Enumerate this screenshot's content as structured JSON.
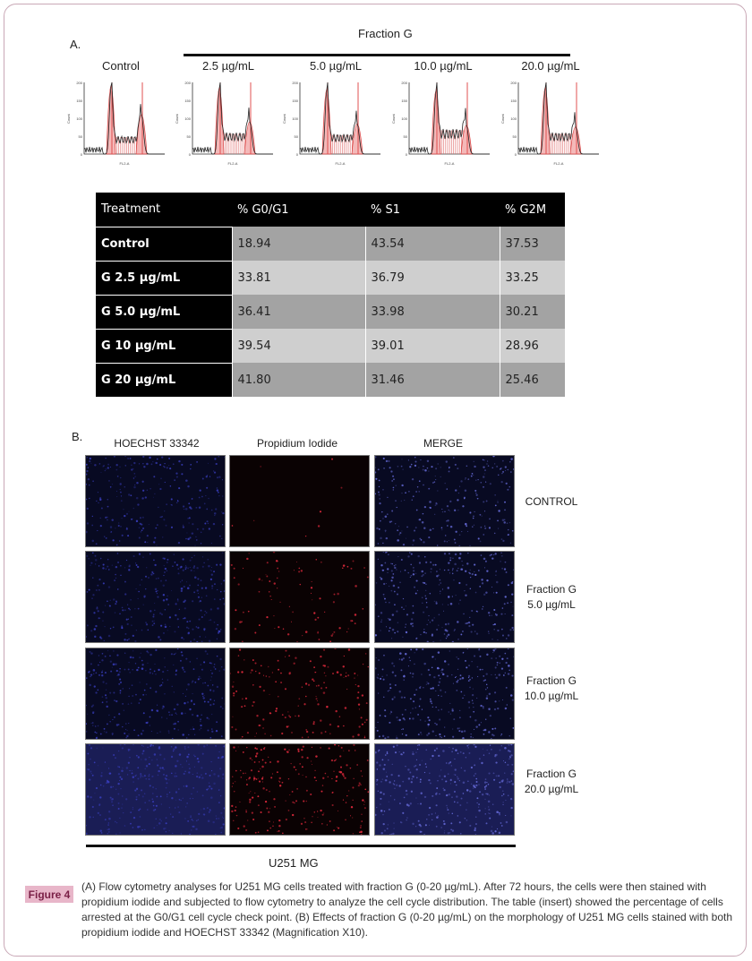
{
  "panel_a": {
    "label": "A.",
    "fraction_title": "Fraction G",
    "histograms": [
      {
        "label": "Control",
        "xaxis": "FL2-A",
        "yaxis": "Count"
      },
      {
        "label": "2.5 µg/mL",
        "xaxis": "FL2-A",
        "yaxis": "Count"
      },
      {
        "label": "5.0 µg/mL",
        "xaxis": "FL2-A",
        "yaxis": "Count"
      },
      {
        "label": "10.0 µg/mL",
        "xaxis": "FL2-A",
        "yaxis": "Count"
      },
      {
        "label": "20.0 µg/mL",
        "xaxis": "FL2-A",
        "yaxis": "Count"
      }
    ],
    "table": {
      "headers": [
        "Treatment",
        "% G0/G1",
        "% S1",
        "% G2M"
      ],
      "rows": [
        {
          "treatment": "Control",
          "g0g1": "18.94",
          "s1": "43.54",
          "g2m": "37.53"
        },
        {
          "treatment": "G 2.5 µg/mL",
          "g0g1": "33.81",
          "s1": "36.79",
          "g2m": "33.25"
        },
        {
          "treatment": "G 5.0 µg/mL",
          "g0g1": "36.41",
          "s1": "33.98",
          "g2m": "30.21"
        },
        {
          "treatment": "G 10 µg/mL",
          "g0g1": "39.54",
          "s1": "39.01",
          "g2m": "28.96"
        },
        {
          "treatment": "G 20 µg/mL",
          "g0g1": "41.80",
          "s1": "31.46",
          "g2m": "25.46"
        }
      ]
    }
  },
  "panel_b": {
    "label": "B.",
    "columns": [
      "HOECHST 33342",
      "Propidium Iodide",
      "MERGE"
    ],
    "rows": [
      {
        "line1": "CONTROL",
        "line2": ""
      },
      {
        "line1": "Fraction G",
        "line2": "5.0 µg/mL"
      },
      {
        "line1": "Fraction G",
        "line2": "10.0 µg/mL"
      },
      {
        "line1": "Fraction G",
        "line2": "20.0 µg/mL"
      }
    ],
    "cell_line": "U251 MG"
  },
  "caption": {
    "badge": "Figure 4",
    "text": "(A) Flow cytometry analyses for U251 MG cells treated with fraction G (0-20 µg/mL). After 72 hours, the cells were then stained with propidium iodide and subjected to flow cytometry to analyze the cell cycle distribution. The table (insert) showed the percentage of cells arrested at the G0/G1 cell cycle check point. (B) Effects of fraction G (0-20 µg/mL) on the morphology of U251 MG cells stained with both propidium iodide and HOECHST 33342 (Magnification X10)."
  },
  "colors": {
    "hoechst": "#3a3fc0",
    "propidium": "#d8283a",
    "badge_bg": "#e8b6c9",
    "badge_text": "#7a1f46",
    "frame": "#c9a8b6"
  }
}
